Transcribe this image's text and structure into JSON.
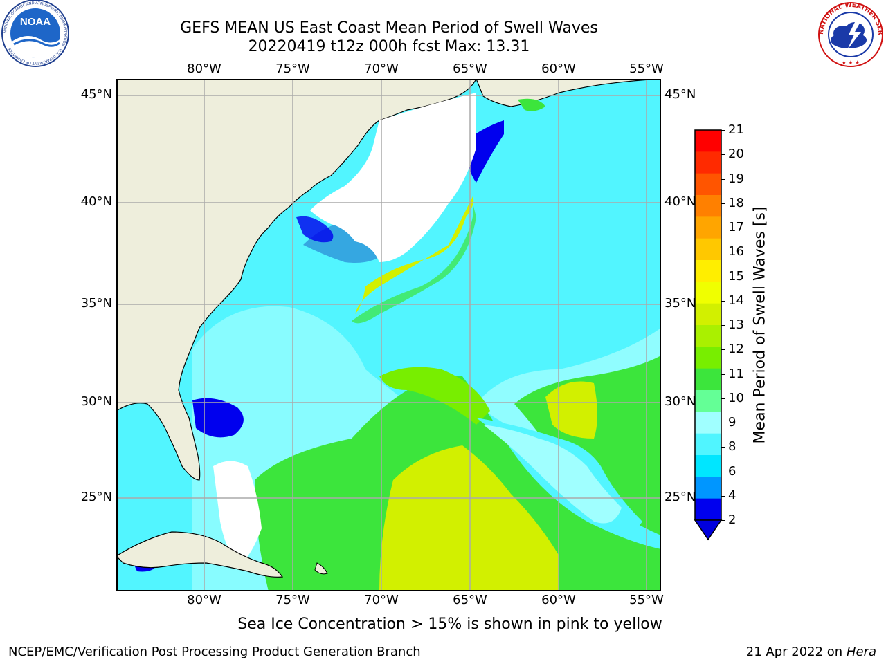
{
  "header": {
    "title_line1": "GEFS MEAN US East Coast Mean Period of Swell Waves",
    "title_line2": "20220419 t12z 000h fcst   Max: 13.31"
  },
  "logos": {
    "noaa_text": "NOAA",
    "noaa_ring": "NATIONAL OCEANIC AND ATMOSPHERIC ADMINISTRATION · U.S. DEPARTMENT OF COMMERCE",
    "nws_ring": "NATIONAL WEATHER SERVICE"
  },
  "map": {
    "lon_ticks": [
      "80°W",
      "75°W",
      "70°W",
      "65°W",
      "60°W",
      "55°W"
    ],
    "lat_ticks": [
      "45°N",
      "40°N",
      "35°N",
      "30°N",
      "25°N"
    ],
    "colors": {
      "land": "#eeeedc",
      "ocean_bg": "#52f5ff",
      "grid": "#aaaaaa"
    }
  },
  "colorbar": {
    "label": "Mean Period of Swell Waves [s]",
    "ticks": [
      "21",
      "20",
      "19",
      "18",
      "17",
      "16",
      "15",
      "14",
      "13",
      "12",
      "11",
      "10",
      "9",
      "8",
      "6",
      "4",
      "2"
    ],
    "colors": [
      "#ff0000",
      "#ff2a00",
      "#ff5500",
      "#ff8000",
      "#ffa500",
      "#ffc800",
      "#ffee00",
      "#f0ff00",
      "#d2f000",
      "#aaf000",
      "#78ee00",
      "#3ce53c",
      "#64ff96",
      "#a0ffff",
      "#50f5ff",
      "#00e6ff",
      "#0096ff",
      "#0000ee"
    ],
    "extend_color": "#0000dd"
  },
  "footer": {
    "note": "Sea Ice Concentration > 15% is shown in pink to yellow",
    "left": "NCEP/EMC/Verification Post Processing Product Generation Branch",
    "right_date": "21 Apr 2022 on ",
    "right_host": "Hera"
  }
}
